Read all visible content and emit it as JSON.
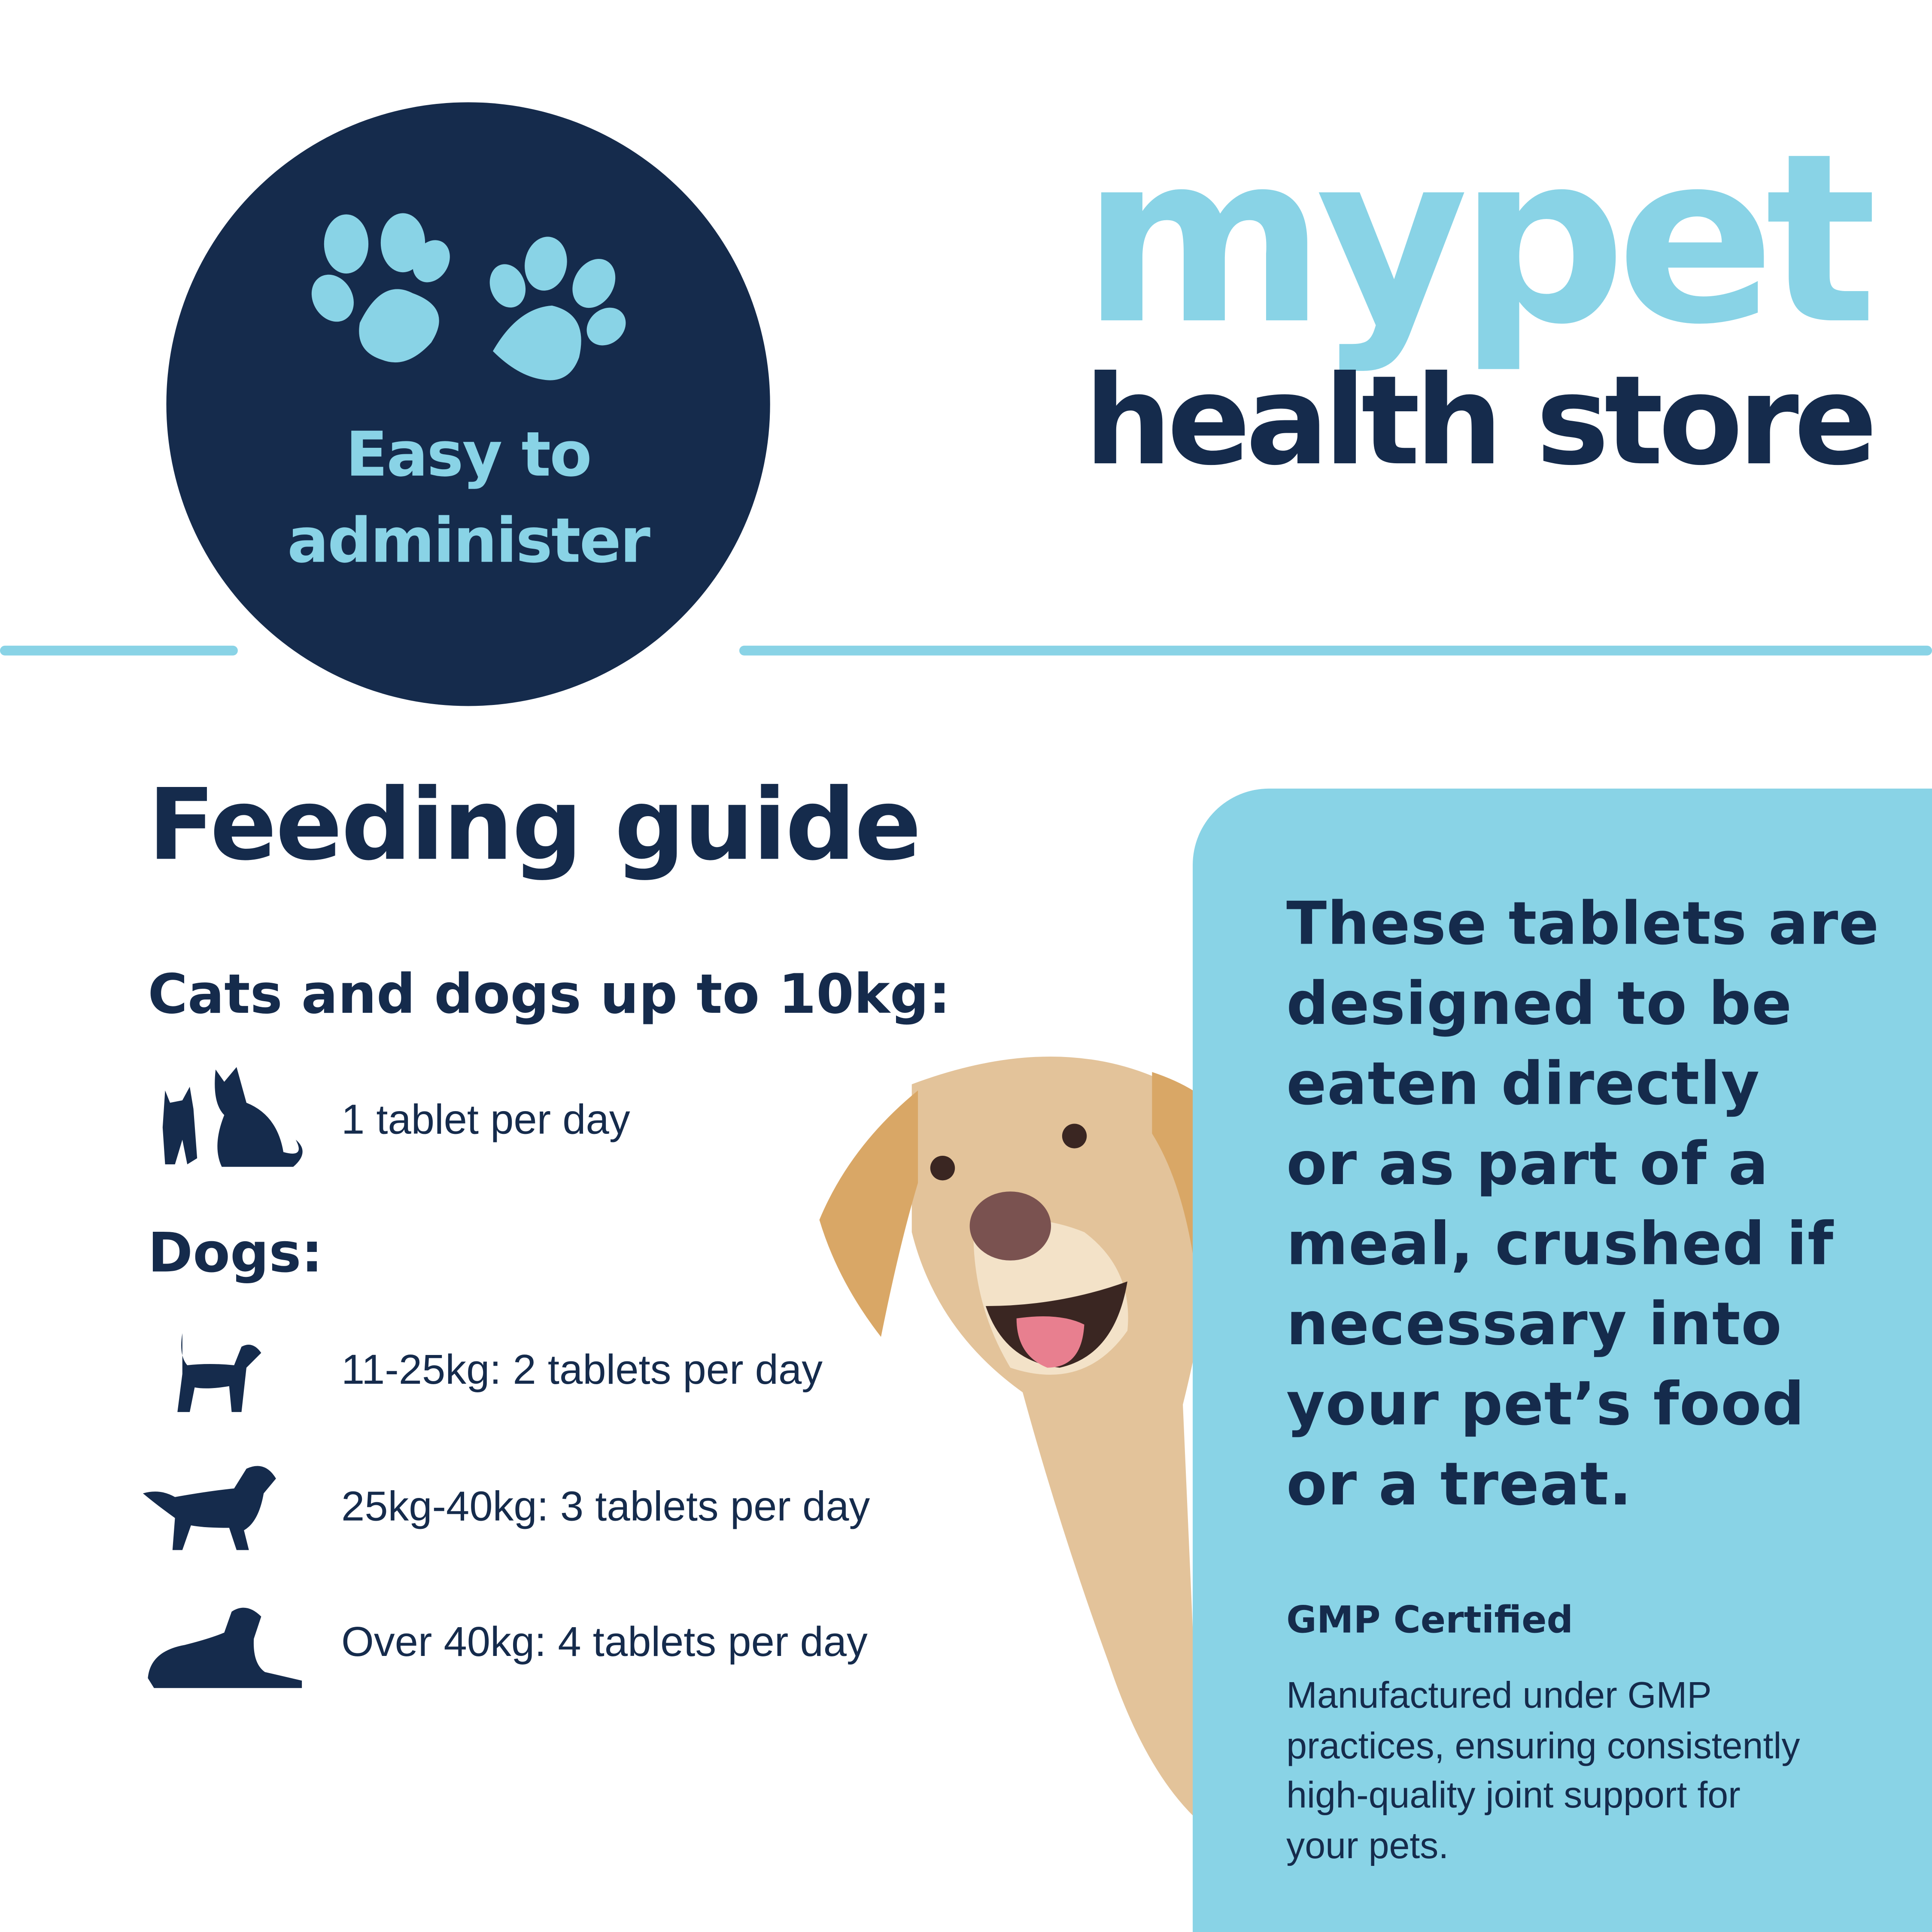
{
  "brand": {
    "logo_line1": "mypet",
    "logo_line2": "health store",
    "colors": {
      "navy": "#152b4c",
      "light_blue": "#89d3e6"
    }
  },
  "badge": {
    "line1": "Easy to",
    "line2": "administer",
    "icon": "paw-prints-icon"
  },
  "feeding_guide": {
    "title": "Feeding guide",
    "small_section": {
      "heading": "Cats and dogs up to 10kg:",
      "rows": [
        {
          "icon": "cat-and-dog-icon",
          "text": "1 tablet per day"
        }
      ]
    },
    "dogs_section": {
      "heading": "Dogs:",
      "rows": [
        {
          "icon": "small-dog-icon",
          "text": "11-25kg: 2 tablets per day"
        },
        {
          "icon": "medium-dog-icon",
          "text": "25kg-40kg: 3 tablets per day"
        },
        {
          "icon": "large-dog-lying-icon",
          "text": "Over 40kg: 4 tablets per day"
        }
      ]
    }
  },
  "panel": {
    "lines": [
      "These tablets are",
      "designed to be",
      "eaten directly",
      "or as part of a",
      "meal, crushed if",
      "necessary into",
      "your pet’s food",
      "or a treat."
    ],
    "gmp_title": "GMP Certified",
    "gmp_lines": [
      "Manufactured under GMP",
      "practices, ensuring consistently",
      "high-quality joint support for",
      "your pets."
    ]
  }
}
